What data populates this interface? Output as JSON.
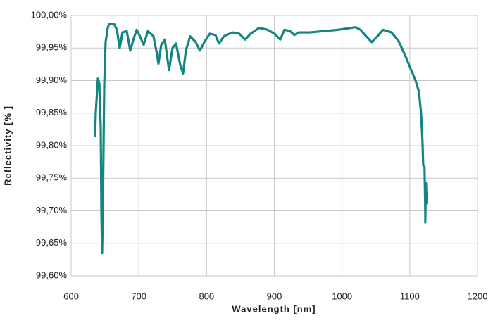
{
  "chart_data": {
    "type": "line",
    "xlabel": "Wavelength [nm]",
    "ylabel": "Reflectivity [% ]",
    "xlim": [
      600,
      1200
    ],
    "xticks": [
      600,
      700,
      800,
      900,
      1000,
      1100,
      1200
    ],
    "ylim": [
      99.6,
      100
    ],
    "yticks": [
      {
        "value": 99.6,
        "label": "99,60%"
      },
      {
        "value": 99.65,
        "label": "99,65%"
      },
      {
        "value": 99.7,
        "label": "99,70%"
      },
      {
        "value": 99.75,
        "label": "99,75%"
      },
      {
        "value": 99.8,
        "label": "99,80%"
      },
      {
        "value": 99.85,
        "label": "99,85%"
      },
      {
        "value": 99.9,
        "label": "99,90%"
      },
      {
        "value": 99.95,
        "label": "99,95%"
      },
      {
        "value": 100,
        "label": "100,00%"
      }
    ],
    "grid": true,
    "series": [
      {
        "color": "#148580",
        "x": [
          635.3,
          636.4,
          639.5,
          641.6,
          643.7,
          644.7,
          645.7,
          646.8,
          648.9,
          650.9,
          654.1,
          656.1,
          663.4,
          667.6,
          671.7,
          675.9,
          682.1,
          687.3,
          692.5,
          696.7,
          700.8,
          707.1,
          713.3,
          721.6,
          725.8,
          728.9,
          733.1,
          738.3,
          744.5,
          749.7,
          754.9,
          761.1,
          765.3,
          769.4,
          775.7,
          784.0,
          790.2,
          796.5,
          804.8,
          813.1,
          818.3,
          825.6,
          838.0,
          848.4,
          856.8,
          865.1,
          877.5,
          890.0,
          900.4,
          908.7,
          914.9,
          923.2,
          929.5,
          935.7,
          952.4,
          973.2,
          994.0,
          1020.0,
          1027.2,
          1035.6,
          1043.9,
          1052.2,
          1060.5,
          1073.0,
          1083.4,
          1093.8,
          1102.1,
          1108.3,
          1113.5,
          1116.6,
          1118.7,
          1119.8,
          1121.8,
          1122.9,
          1122.9,
          1123.9,
          1125.0
        ],
        "values": [
          99.813,
          99.851,
          99.903,
          99.896,
          99.829,
          99.699,
          99.635,
          99.699,
          99.894,
          99.959,
          99.981,
          99.987,
          99.987,
          99.978,
          99.95,
          99.974,
          99.976,
          99.946,
          99.965,
          99.978,
          99.97,
          99.955,
          99.976,
          99.968,
          99.946,
          99.926,
          99.955,
          99.963,
          99.916,
          99.95,
          99.957,
          99.924,
          99.911,
          99.946,
          99.968,
          99.959,
          99.946,
          99.959,
          99.972,
          99.97,
          99.957,
          99.968,
          99.974,
          99.972,
          99.963,
          99.972,
          99.981,
          99.978,
          99.972,
          99.963,
          99.978,
          99.976,
          99.97,
          99.974,
          99.974,
          99.976,
          99.978,
          99.982,
          99.978,
          99.968,
          99.959,
          99.968,
          99.978,
          99.974,
          99.961,
          99.937,
          99.916,
          99.901,
          99.883,
          99.851,
          99.808,
          99.77,
          99.767,
          99.699,
          99.682,
          99.743,
          99.71
        ]
      }
    ]
  }
}
